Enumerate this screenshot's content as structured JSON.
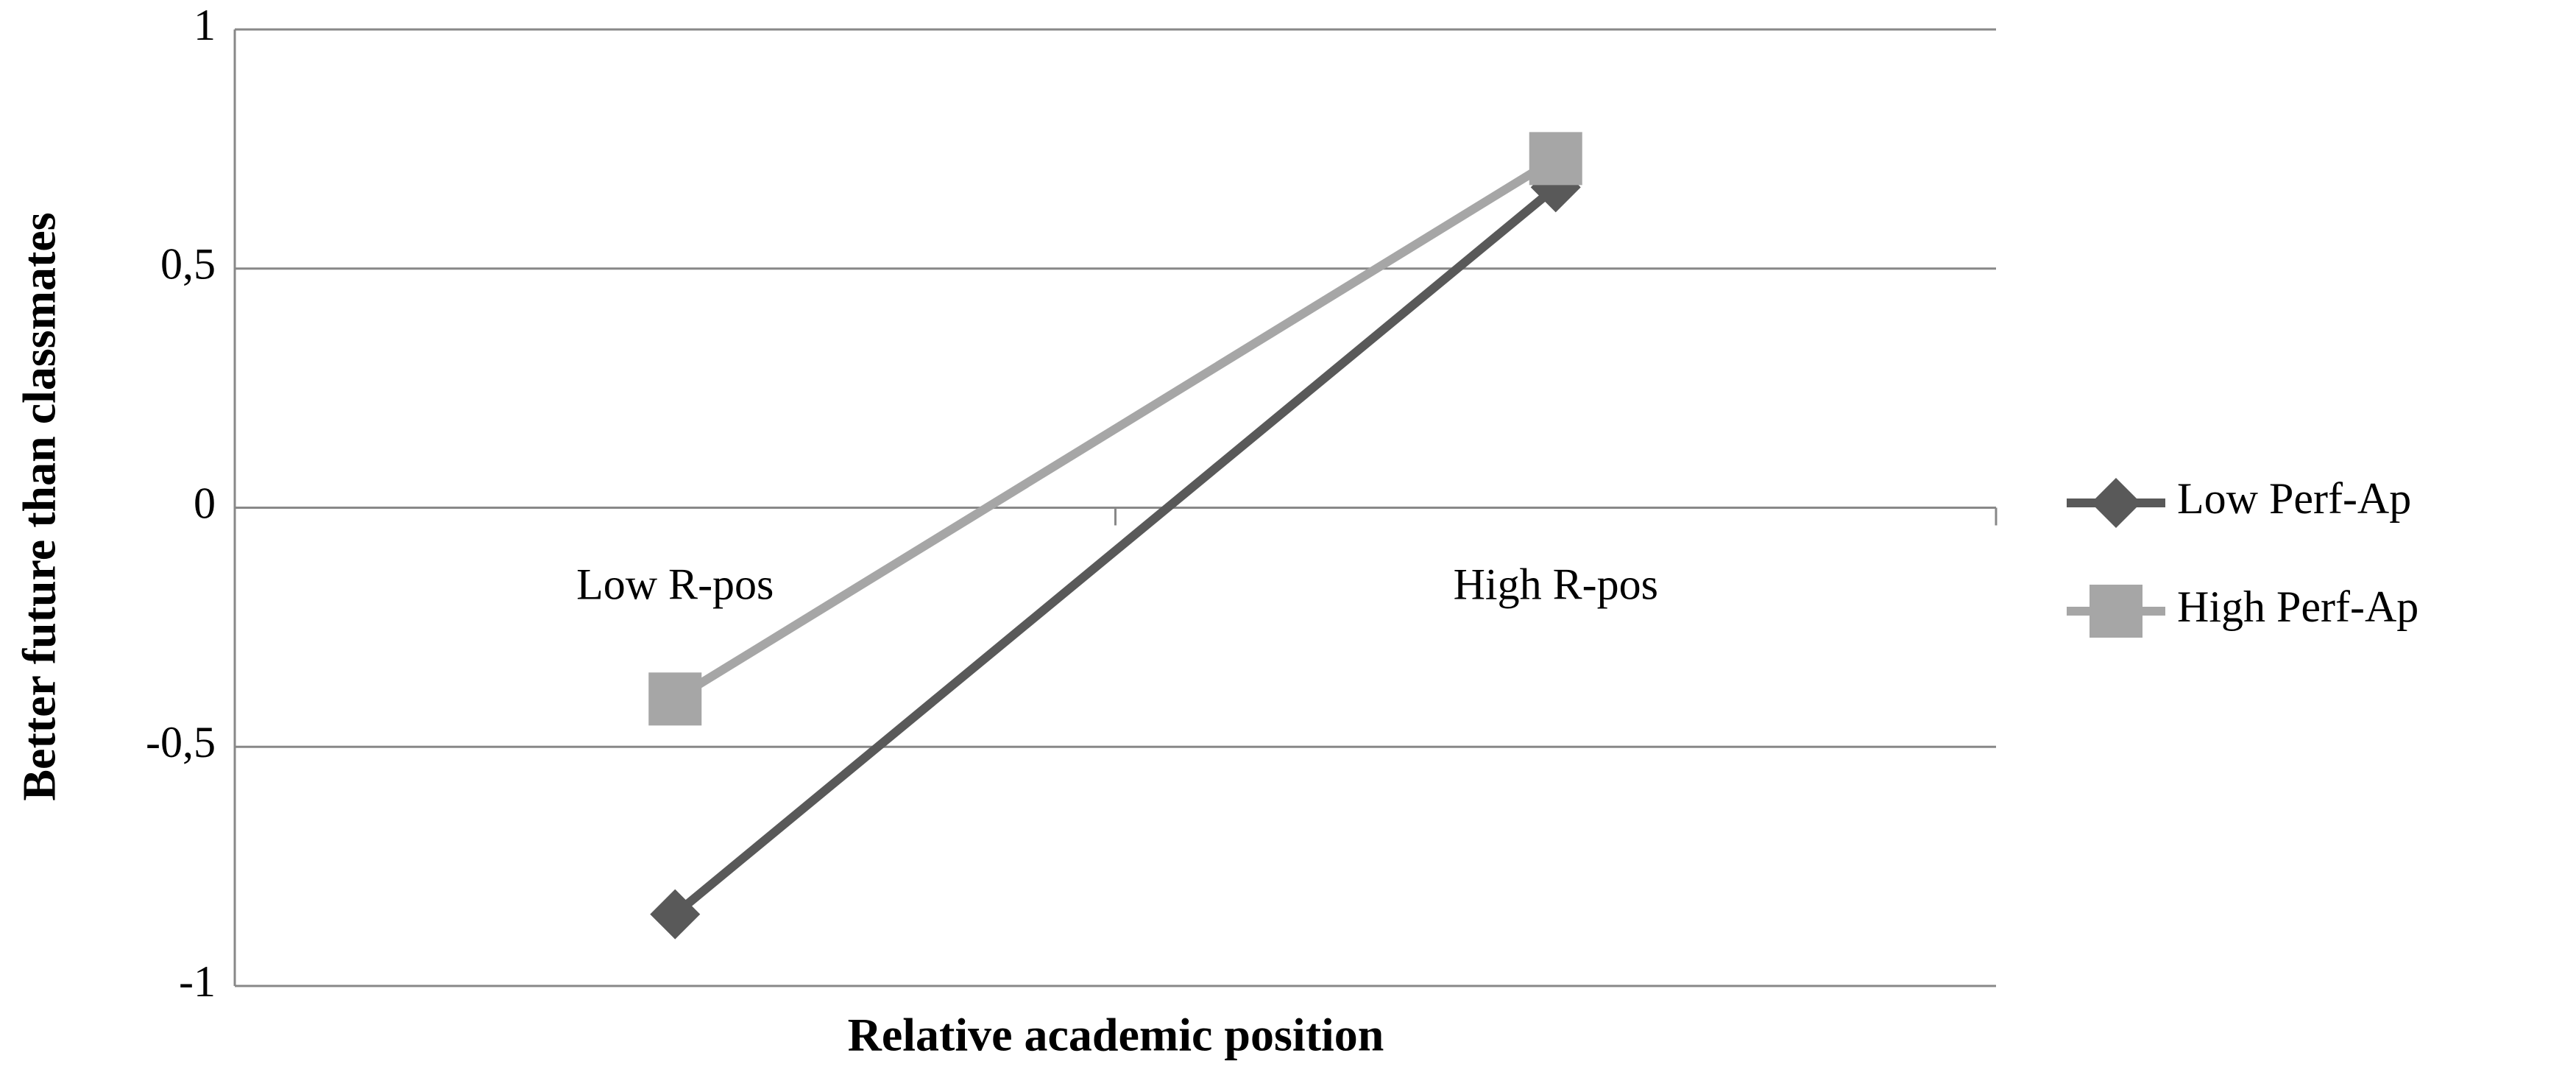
{
  "chart_data": {
    "type": "line",
    "x_label": "Relative academic position",
    "y_label": "Better future than classmates",
    "categories": [
      "Low R-pos",
      "High R-pos"
    ],
    "series": [
      {
        "name": "Low Perf-Ap",
        "color": "#595959",
        "marker": "diamond",
        "values": [
          -0.85,
          0.67
        ]
      },
      {
        "name": "High Perf-Ap",
        "color": "#a6a6a6",
        "marker": "square",
        "values": [
          -0.4,
          0.73
        ]
      }
    ],
    "ylim": [
      -1,
      1
    ],
    "yticks": [
      -1,
      {
        "value": -0.5,
        "label": "-0,5"
      },
      0,
      {
        "value": 0.5,
        "label": "0,5"
      },
      1
    ],
    "grid": true,
    "legend": "right"
  }
}
